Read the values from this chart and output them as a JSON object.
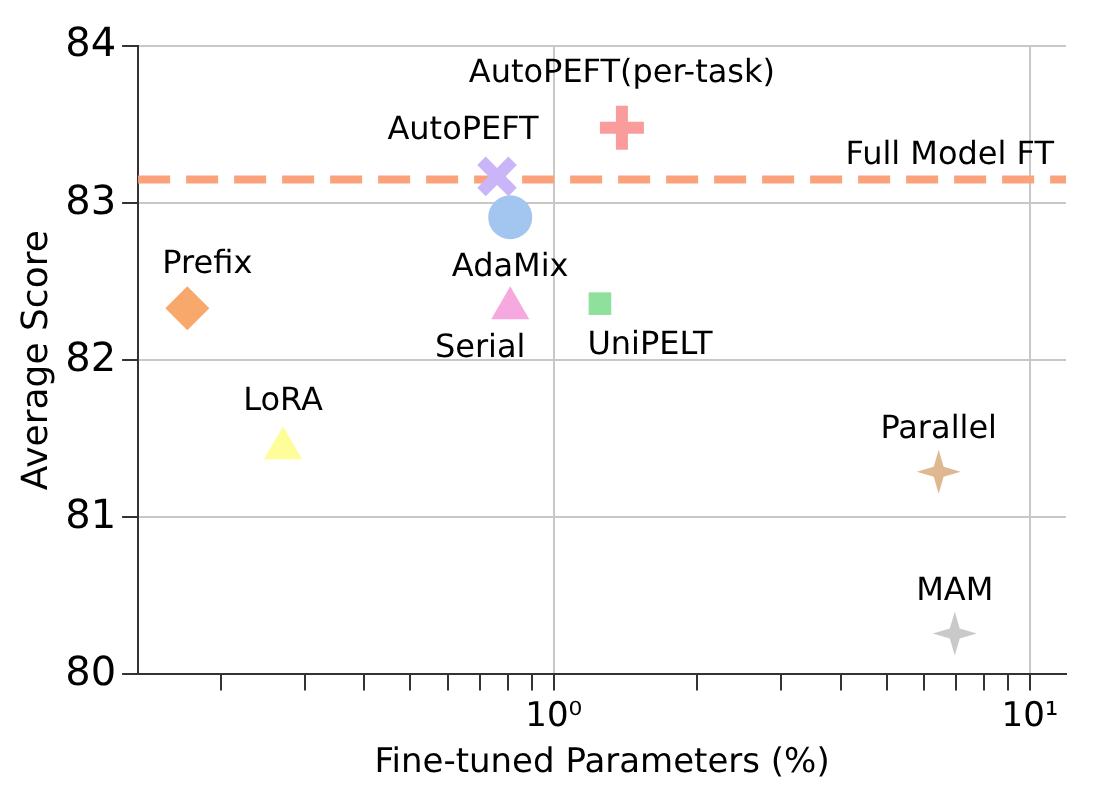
{
  "chart_data": {
    "type": "scatter",
    "xlabel": "Fine-tuned Parameters (%)",
    "ylabel": "Average Score",
    "log": "x",
    "grid": true,
    "legend": false,
    "xlim": [
      0.134,
      11.9
    ],
    "xticks": [
      {
        "value": 0.2,
        "label": null
      },
      {
        "value": 0.3,
        "label": null
      },
      {
        "value": 0.4,
        "label": null
      },
      {
        "value": 0.5,
        "label": null
      },
      {
        "value": 0.6,
        "label": null
      },
      {
        "value": 0.7,
        "label": null
      },
      {
        "value": 0.8,
        "label": null
      },
      {
        "value": 0.9,
        "label": null
      },
      {
        "value": 1,
        "label": "10⁰"
      },
      {
        "value": 2,
        "label": null
      },
      {
        "value": 3,
        "label": null
      },
      {
        "value": 4,
        "label": null
      },
      {
        "value": 5,
        "label": null
      },
      {
        "value": 6,
        "label": null
      },
      {
        "value": 7,
        "label": null
      },
      {
        "value": 8,
        "label": null
      },
      {
        "value": 9,
        "label": null
      },
      {
        "value": 10,
        "label": "10¹"
      }
    ],
    "ylim": [
      80,
      84
    ],
    "yticks": [
      80,
      81,
      82,
      83,
      84
    ],
    "ref_lines": [
      {
        "axis": "y",
        "value": 83.15,
        "label": "Full Model FT",
        "color": "#fba27c",
        "line_style": "dashed"
      }
    ],
    "series": [
      {
        "name": "Prefix",
        "color": "#f9a86c",
        "marker": "diamond",
        "x": [
          0.17
        ],
        "values": [
          82.33
        ]
      },
      {
        "name": "LoRA",
        "color": "#fdfd9a",
        "marker": "triangle",
        "x": [
          0.27
        ],
        "values": [
          81.44
        ]
      },
      {
        "name": "AutoPEFT",
        "color": "#c9b5f8",
        "marker": "x",
        "x": [
          0.76
        ],
        "values": [
          83.17
        ]
      },
      {
        "name": "AdaMix",
        "color": "#a3c6f0",
        "marker": "circle",
        "x": [
          0.81
        ],
        "values": [
          82.91
        ]
      },
      {
        "name": "Serial",
        "color": "#f5a9de",
        "marker": "triangle",
        "x": [
          0.81
        ],
        "values": [
          82.33
        ]
      },
      {
        "name": "UniPELT",
        "color": "#8fe09c",
        "marker": "square",
        "x": [
          1.25
        ],
        "values": [
          82.36
        ]
      },
      {
        "name": "AutoPEFT(per-task)",
        "color": "#fa9c9c",
        "marker": "cross",
        "x": [
          1.39
        ],
        "values": [
          83.48
        ]
      },
      {
        "name": "Parallel",
        "color": "#deb891",
        "marker": "star",
        "x": [
          6.43
        ],
        "values": [
          81.29
        ]
      },
      {
        "name": "MAM",
        "color": "#c9c9c9",
        "marker": "star",
        "x": [
          6.95
        ],
        "values": [
          80.26
        ]
      }
    ]
  }
}
